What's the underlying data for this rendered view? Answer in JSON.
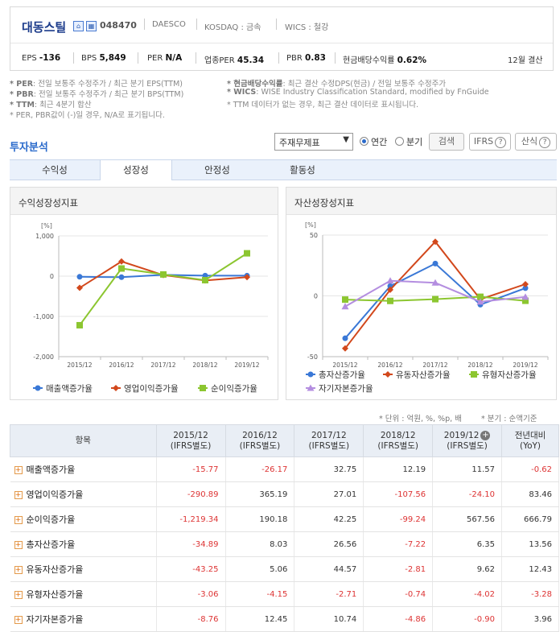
{
  "header": {
    "corp_name": "대동스틸",
    "home_icon": "home-icon",
    "building_icon": "building-icon",
    "code": "048470",
    "en_name": "DAESCO",
    "market": "KOSDAQ : 금속",
    "wics": "WICS : 철강",
    "stats": [
      {
        "label": "EPS",
        "value": "-136"
      },
      {
        "label": "BPS",
        "value": "5,849"
      },
      {
        "label": "PER",
        "value": "N/A"
      },
      {
        "label": "업종PER",
        "value": "45.34"
      },
      {
        "label": "PBR",
        "value": "0.83"
      },
      {
        "label": "현금배당수익률",
        "value": "0.62%"
      }
    ],
    "fiscal": "12월 결산"
  },
  "notes": {
    "per": "* PER",
    "per_desc": ": 전일 보통주 수정주가 / 최근 분기 EPS(TTM)",
    "pbr": "* PBR",
    "pbr_desc": ": 전일 보통주 수정주가 / 최근 분기 BPS(TTM)",
    "ttm": "* TTM",
    "ttm_desc": ": 최근 4분기 합산",
    "na": "* PER, PBR값이 (-)일 경우, N/A로 표기됩니다.",
    "div": "* 현금배당수익률",
    "div_desc": ": 최근 결산 수정DPS(현금) / 전일 보통주 수정주가",
    "wics": "* WICS",
    "wics_desc": ": WISE Industry Classification Standard, modified by FnGuide",
    "ttm_none": "* TTM 데이터가 없는 경우, 최근 결산 데이터로 표시됩니다."
  },
  "toolbar": {
    "title": "투자분석",
    "select_value": "주재무제표",
    "radio_annual": "연간",
    "radio_quarter": "분기",
    "search_btn": "검색",
    "ifrs_btn": "IFRS",
    "formula_btn": "산식"
  },
  "tabs": [
    "수익성",
    "성장성",
    "안정성",
    "활동성"
  ],
  "active_tab": "성장성",
  "colors": {
    "blue": "#3a78d6",
    "red": "#d2481c",
    "green": "#8cc630",
    "purple": "#b48ee0"
  },
  "chart_data": [
    {
      "type": "line",
      "title": "수익성장성지표",
      "ylabel": "[%]",
      "x": [
        "2015/12",
        "2016/12",
        "2017/12",
        "2018/12",
        "2019/12"
      ],
      "ylim": [
        -2000,
        1000
      ],
      "yticks": [
        "1,000",
        "0",
        "-1,000",
        "-2,000"
      ],
      "series": [
        {
          "name": "매출액증가율",
          "values": [
            -15.77,
            -26.17,
            32.75,
            12.19,
            11.57
          ]
        },
        {
          "name": "영업이익증가율",
          "values": [
            -290.89,
            365.19,
            27.01,
            -107.56,
            -24.1
          ]
        },
        {
          "name": "순이익증가율",
          "values": [
            -1219.34,
            190.18,
            42.25,
            -99.24,
            567.56
          ]
        }
      ]
    },
    {
      "type": "line",
      "title": "자산성장성지표",
      "ylabel": "[%]",
      "x": [
        "2015/12",
        "2016/12",
        "2017/12",
        "2018/12",
        "2019/12"
      ],
      "ylim": [
        -50,
        50
      ],
      "yticks": [
        "50",
        "0",
        "-50"
      ],
      "series": [
        {
          "name": "총자산증가율",
          "values": [
            -34.89,
            8.03,
            26.56,
            -7.22,
            6.35
          ]
        },
        {
          "name": "유동자산증가율",
          "values": [
            -43.25,
            5.06,
            44.57,
            -2.81,
            9.62
          ]
        },
        {
          "name": "유형자산증가율",
          "values": [
            -3.06,
            -4.15,
            -2.71,
            -0.74,
            -4.02
          ]
        },
        {
          "name": "자기자본증가율",
          "values": [
            -8.76,
            12.45,
            10.74,
            -4.86,
            -0.9
          ]
        }
      ]
    }
  ],
  "table": {
    "units": "* 단위 : 억원, %, %p, 배",
    "quarter_note": "* 분기 : 순액기준",
    "headers": [
      "항목",
      "2015/12",
      "(IFRS별도)",
      "2016/12",
      "(IFRS별도)",
      "2017/12",
      "(IFRS별도)",
      "2018/12",
      "(IFRS별도)",
      "2019/12",
      "(IFRS별도)",
      "전년대비",
      "(YoY)"
    ],
    "rows": [
      {
        "label": "매출액증가율",
        "values": [
          "-15.77",
          "-26.17",
          "32.75",
          "12.19",
          "11.57",
          "-0.62"
        ]
      },
      {
        "label": "영업이익증가율",
        "values": [
          "-290.89",
          "365.19",
          "27.01",
          "-107.56",
          "-24.10",
          "83.46"
        ]
      },
      {
        "label": "순이익증가율",
        "values": [
          "-1,219.34",
          "190.18",
          "42.25",
          "-99.24",
          "567.56",
          "666.79"
        ]
      },
      {
        "label": "총자산증가율",
        "values": [
          "-34.89",
          "8.03",
          "26.56",
          "-7.22",
          "6.35",
          "13.56"
        ]
      },
      {
        "label": "유동자산증가율",
        "values": [
          "-43.25",
          "5.06",
          "44.57",
          "-2.81",
          "9.62",
          "12.43"
        ]
      },
      {
        "label": "유형자산증가율",
        "values": [
          "-3.06",
          "-4.15",
          "-2.71",
          "-0.74",
          "-4.02",
          "-3.28"
        ]
      },
      {
        "label": "자기자본증가율",
        "values": [
          "-8.76",
          "12.45",
          "10.74",
          "-4.86",
          "-0.90",
          "3.96"
        ]
      }
    ]
  }
}
